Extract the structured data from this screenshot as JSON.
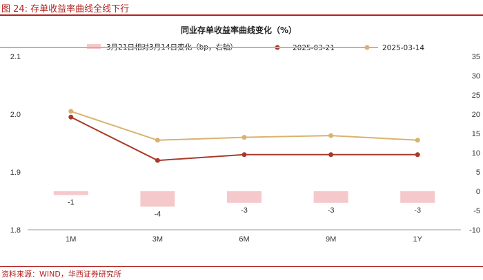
{
  "figure": {
    "title": "图 24:  存单收益率曲线全线下行",
    "source": "资料来源：WIND，华西证券研究所"
  },
  "colors": {
    "series_2025_03_21": "#a83a2c",
    "series_2025_03_14": "#d8b26e",
    "bars": "#f5c9cb",
    "brand_red": "#b2201f"
  },
  "chart_data": {
    "type": "line",
    "title": "同业存单收益率曲线变化（%）",
    "categories": [
      "1M",
      "3M",
      "6M",
      "9M",
      "1Y"
    ],
    "series": [
      {
        "name": "2025-03-21",
        "axis": "left",
        "values": [
          1.995,
          1.92,
          1.93,
          1.93,
          1.93
        ]
      },
      {
        "name": "2025-03-14",
        "axis": "left",
        "values": [
          2.005,
          1.955,
          1.96,
          1.963,
          1.955
        ]
      },
      {
        "name": "3月21日相对3月14日变化（bp，右轴）",
        "axis": "right",
        "kind": "bar",
        "values": [
          -1,
          -4,
          -3,
          -3,
          -3
        ]
      }
    ],
    "y_left": {
      "min": 1.8,
      "max": 2.1,
      "ticks": [
        "1.8",
        "1.9",
        "2.0",
        "2.1"
      ],
      "tick_values": [
        1.8,
        1.9,
        2.0,
        2.1
      ]
    },
    "y_right": {
      "min": -10,
      "max": 35,
      "ticks": [
        "-10",
        "-5",
        "0",
        "5",
        "10",
        "15",
        "20",
        "25",
        "30",
        "35"
      ],
      "tick_values": [
        -10,
        -5,
        0,
        5,
        10,
        15,
        20,
        25,
        30,
        35
      ]
    },
    "bar_labels": [
      "-1",
      "-4",
      "-3",
      "-3",
      "-3"
    ],
    "legend_position": "top",
    "grid": false
  }
}
